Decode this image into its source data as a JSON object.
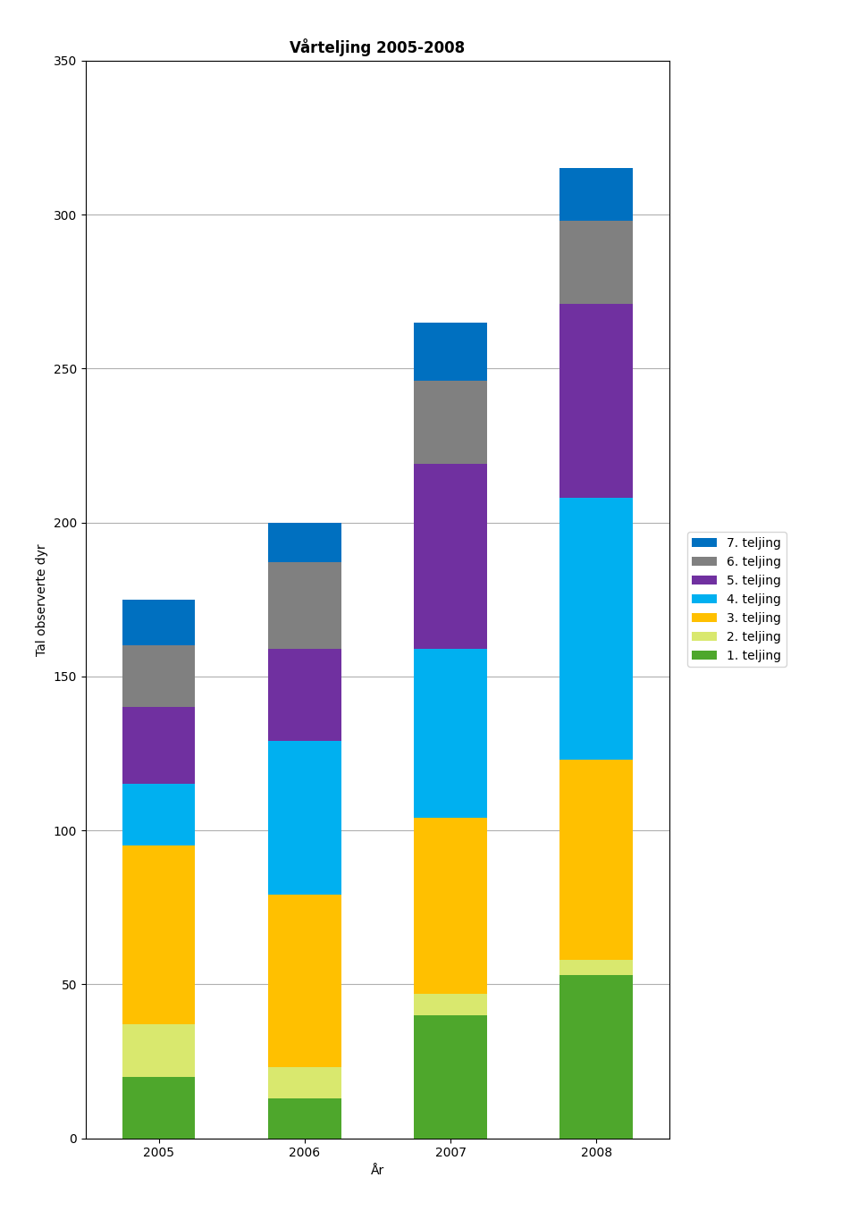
{
  "chart_data": {
    "type": "bar",
    "stacked": true,
    "title": "Vårteljing 2005-2008",
    "xlabel": "År",
    "ylabel": "Tal observerte dyr",
    "categories": [
      "2005",
      "2006",
      "2007",
      "2008"
    ],
    "series": [
      {
        "name": "1. teljing",
        "color": "#4ea72c",
        "values": [
          20,
          13,
          40,
          53
        ]
      },
      {
        "name": "2. teljing",
        "color": "#d9e86e",
        "values": [
          17,
          10,
          7,
          5
        ]
      },
      {
        "name": "3. teljing",
        "color": "#ffc000",
        "values": [
          58,
          56,
          57,
          65
        ]
      },
      {
        "name": "4. teljing",
        "color": "#00b0f0",
        "values": [
          20,
          50,
          55,
          85
        ]
      },
      {
        "name": "5. teljing",
        "color": "#7030a0",
        "values": [
          25,
          30,
          60,
          63
        ]
      },
      {
        "name": "6. teljing",
        "color": "#808080",
        "values": [
          20,
          28,
          27,
          27
        ]
      },
      {
        "name": "7. teljing",
        "color": "#0070c0",
        "values": [
          15,
          13,
          19,
          17
        ]
      }
    ],
    "ylim": [
      0,
      350
    ],
    "yticks": [
      0,
      50,
      100,
      150,
      200,
      250,
      300,
      350
    ],
    "grid": true,
    "legend": "right"
  }
}
